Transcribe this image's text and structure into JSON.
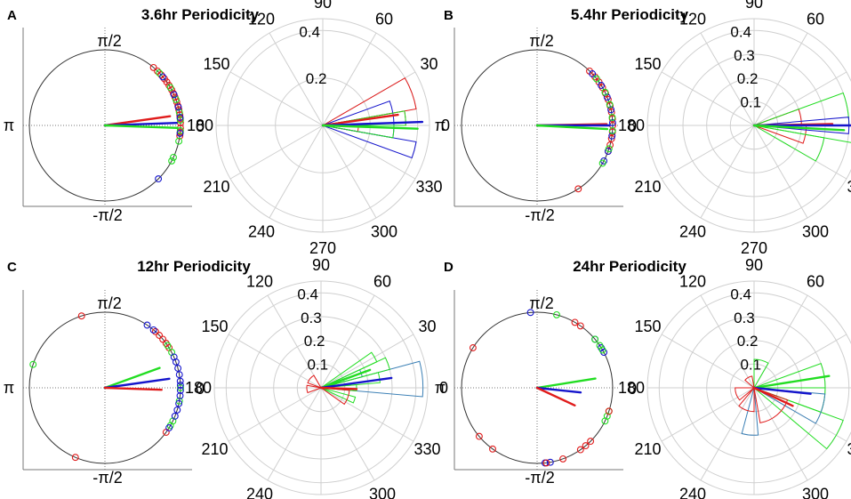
{
  "colors": {
    "red": "#e01b1b",
    "green": "#22dd22",
    "blue": "#1515cc",
    "steel": "#3a7fb5",
    "axis": "#555555",
    "grid": "#cfcfcf"
  },
  "circle_labels": {
    "top": "π/2",
    "bottom": "-π/2",
    "left": "π",
    "right": "0"
  },
  "polar_angle_labels": [
    "0",
    "30",
    "60",
    "90",
    "120",
    "150",
    "180",
    "210",
    "240",
    "270",
    "300",
    "330"
  ],
  "chart_data": [
    {
      "letter": "A",
      "title": "3.6hr Periodicity",
      "type": "polar-phase",
      "unit_circle": {
        "mean_vectors": [
          {
            "color": "red",
            "angle_deg": 8,
            "length": 0.87
          },
          {
            "color": "blue",
            "angle_deg": 2,
            "length": 0.95
          },
          {
            "color": "green",
            "angle_deg": -2,
            "length": 0.96
          }
        ],
        "points": [
          {
            "color": "red",
            "angles_deg": [
              50,
              46,
              42,
              38,
              35,
              32,
              28,
              25,
              22,
              18,
              15,
              12,
              8,
              5,
              2,
              -2,
              -5,
              -8
            ]
          },
          {
            "color": "green",
            "angles_deg": [
              44,
              30,
              20,
              10,
              4,
              -4,
              -12,
              -25,
              -28
            ]
          },
          {
            "color": "blue",
            "angles_deg": [
              40,
              24,
              14,
              6,
              -6,
              -45
            ]
          }
        ]
      },
      "rose": {
        "rticks": [
          0.2,
          0.4
        ],
        "rmax": 0.45,
        "bars": [
          {
            "color": "red",
            "start_deg": 10,
            "end_deg": 30,
            "r": 0.4
          },
          {
            "color": "red",
            "start_deg": 0,
            "end_deg": 10,
            "r": 0.35
          },
          {
            "color": "red",
            "start_deg": -10,
            "end_deg": 0,
            "r": 0.15
          },
          {
            "color": "blue",
            "start_deg": 0,
            "end_deg": 20,
            "r": 0.3
          },
          {
            "color": "blue",
            "start_deg": -10,
            "end_deg": 0,
            "r": 0.3
          },
          {
            "color": "blue",
            "start_deg": -20,
            "end_deg": -10,
            "r": 0.4
          },
          {
            "color": "green",
            "start_deg": 0,
            "end_deg": 10,
            "r": 0.35
          },
          {
            "color": "green",
            "start_deg": -10,
            "end_deg": 0,
            "r": 0.3
          }
        ],
        "mean_vectors": [
          {
            "color": "red",
            "angle_deg": 8,
            "length": 0.32
          },
          {
            "color": "blue",
            "angle_deg": 2,
            "length": 0.42
          },
          {
            "color": "green",
            "angle_deg": -2,
            "length": 0.4
          }
        ]
      }
    },
    {
      "letter": "B",
      "title": "5.4hr Periodicity",
      "type": "polar-phase",
      "unit_circle": {
        "mean_vectors": [
          {
            "color": "red",
            "angle_deg": 1,
            "length": 0.92
          },
          {
            "color": "blue",
            "angle_deg": 0,
            "length": 0.96
          },
          {
            "color": "green",
            "angle_deg": -3,
            "length": 0.93
          }
        ],
        "points": [
          {
            "color": "red",
            "angles_deg": [
              46,
              40,
              35,
              30,
              25,
              20,
              15,
              10,
              5,
              0,
              -5,
              -10,
              -15,
              -20,
              -57
            ]
          },
          {
            "color": "blue",
            "angles_deg": [
              43,
              32,
              22,
              12,
              2,
              -8,
              -20,
              -28
            ]
          },
          {
            "color": "green",
            "angles_deg": [
              38,
              26,
              16,
              6,
              -4,
              -18,
              -30
            ]
          }
        ]
      },
      "rose": {
        "rticks": [
          0.1,
          0.2,
          0.3,
          0.4
        ],
        "rmax": 0.45,
        "bars": [
          {
            "color": "red",
            "start_deg": 0,
            "end_deg": 20,
            "r": 0.2
          },
          {
            "color": "red",
            "start_deg": -20,
            "end_deg": 0,
            "r": 0.22
          },
          {
            "color": "green",
            "start_deg": 0,
            "end_deg": 20,
            "r": 0.4
          },
          {
            "color": "green",
            "start_deg": -10,
            "end_deg": 0,
            "r": 0.44
          },
          {
            "color": "green",
            "start_deg": -30,
            "end_deg": -10,
            "r": 0.3
          },
          {
            "color": "blue",
            "start_deg": -5,
            "end_deg": 5,
            "r": 0.4
          }
        ],
        "mean_vectors": [
          {
            "color": "red",
            "angle_deg": 1,
            "length": 0.33
          },
          {
            "color": "blue",
            "angle_deg": 0,
            "length": 0.42
          },
          {
            "color": "green",
            "angle_deg": -3,
            "length": 0.38
          }
        ]
      }
    },
    {
      "letter": "C",
      "title": "12hr Periodicity",
      "type": "polar-phase",
      "unit_circle": {
        "mean_vectors": [
          {
            "color": "green",
            "angle_deg": 20,
            "length": 0.77
          },
          {
            "color": "blue",
            "angle_deg": 8,
            "length": 0.86
          },
          {
            "color": "red",
            "angle_deg": -2,
            "length": 0.75
          }
        ],
        "points": [
          {
            "color": "red",
            "angles_deg": [
              108,
              48,
              44,
              40,
              36,
              32,
              -36,
              -113
            ]
          },
          {
            "color": "green",
            "angles_deg": [
              162,
              34,
              28,
              0,
              -10,
              -26,
              -30
            ]
          },
          {
            "color": "blue",
            "angles_deg": [
              56,
              50,
              24,
              20,
              15,
              10,
              5,
              2,
              -2,
              -6,
              -12,
              -17,
              -22,
              -32
            ]
          }
        ]
      },
      "rose": {
        "rticks": [
          0.1,
          0.2,
          0.3,
          0.4
        ],
        "rmax": 0.45,
        "bars": [
          {
            "color": "steel",
            "start_deg": -5,
            "end_deg": 15,
            "r": 0.43
          },
          {
            "color": "steel",
            "start_deg": 15,
            "end_deg": 25,
            "r": 0.18
          },
          {
            "color": "green",
            "start_deg": 25,
            "end_deg": 35,
            "r": 0.26
          },
          {
            "color": "green",
            "start_deg": 15,
            "end_deg": 25,
            "r": 0.3
          },
          {
            "color": "green",
            "start_deg": 5,
            "end_deg": 15,
            "r": 0.25
          },
          {
            "color": "green",
            "start_deg": -5,
            "end_deg": 5,
            "r": 0.15
          },
          {
            "color": "green",
            "start_deg": -25,
            "end_deg": -15,
            "r": 0.15
          },
          {
            "color": "red",
            "start_deg": -35,
            "end_deg": -5,
            "r": 0.12
          },
          {
            "color": "red",
            "start_deg": 120,
            "end_deg": 160,
            "r": 0.06
          },
          {
            "color": "red",
            "start_deg": 170,
            "end_deg": 200,
            "r": 0.06
          }
        ],
        "mean_vectors": [
          {
            "color": "green",
            "angle_deg": 20,
            "length": 0.22
          },
          {
            "color": "blue",
            "angle_deg": 8,
            "length": 0.3
          },
          {
            "color": "red",
            "angle_deg": -2,
            "length": 0.15
          }
        ]
      }
    },
    {
      "letter": "D",
      "title": "24hr Periodicity",
      "type": "polar-phase",
      "unit_circle": {
        "mean_vectors": [
          {
            "color": "green",
            "angle_deg": 9,
            "length": 0.78
          },
          {
            "color": "blue",
            "angle_deg": -6,
            "length": 0.58
          },
          {
            "color": "red",
            "angle_deg": -25,
            "length": 0.55
          }
        ],
        "points": [
          {
            "color": "blue",
            "angles_deg": [
              95,
              40,
              32,
              28,
              -84,
              -80
            ]
          },
          {
            "color": "green",
            "angles_deg": [
              75,
              40,
              34,
              30,
              -18,
              -22,
              -26
            ]
          },
          {
            "color": "red",
            "angles_deg": [
              148,
              60,
              55,
              -18,
              -45,
              -50,
              -55,
              -70,
              -83,
              -126,
              -140
            ]
          }
        ]
      },
      "rose": {
        "rticks": [
          0.1,
          0.2,
          0.3,
          0.4
        ],
        "rmax": 0.45,
        "bars": [
          {
            "color": "green",
            "start_deg": 0,
            "end_deg": 20,
            "r": 0.3
          },
          {
            "color": "green",
            "start_deg": -20,
            "end_deg": 0,
            "r": 0.3
          },
          {
            "color": "green",
            "start_deg": -40,
            "end_deg": -20,
            "r": 0.4
          },
          {
            "color": "green",
            "start_deg": 60,
            "end_deg": 90,
            "r": 0.12
          },
          {
            "color": "steel",
            "start_deg": -30,
            "end_deg": -5,
            "r": 0.3
          },
          {
            "color": "steel",
            "start_deg": -105,
            "end_deg": -85,
            "r": 0.2
          },
          {
            "color": "red",
            "start_deg": -80,
            "end_deg": -20,
            "r": 0.15
          },
          {
            "color": "red",
            "start_deg": -130,
            "end_deg": -90,
            "r": 0.1
          },
          {
            "color": "red",
            "start_deg": 180,
            "end_deg": 220,
            "r": 0.08
          },
          {
            "color": "red",
            "start_deg": 100,
            "end_deg": 140,
            "r": 0.05
          }
        ],
        "mean_vectors": [
          {
            "color": "green",
            "angle_deg": 9,
            "length": 0.32
          },
          {
            "color": "blue",
            "angle_deg": -6,
            "length": 0.24
          },
          {
            "color": "red",
            "angle_deg": -25,
            "length": 0.18
          }
        ]
      }
    }
  ]
}
